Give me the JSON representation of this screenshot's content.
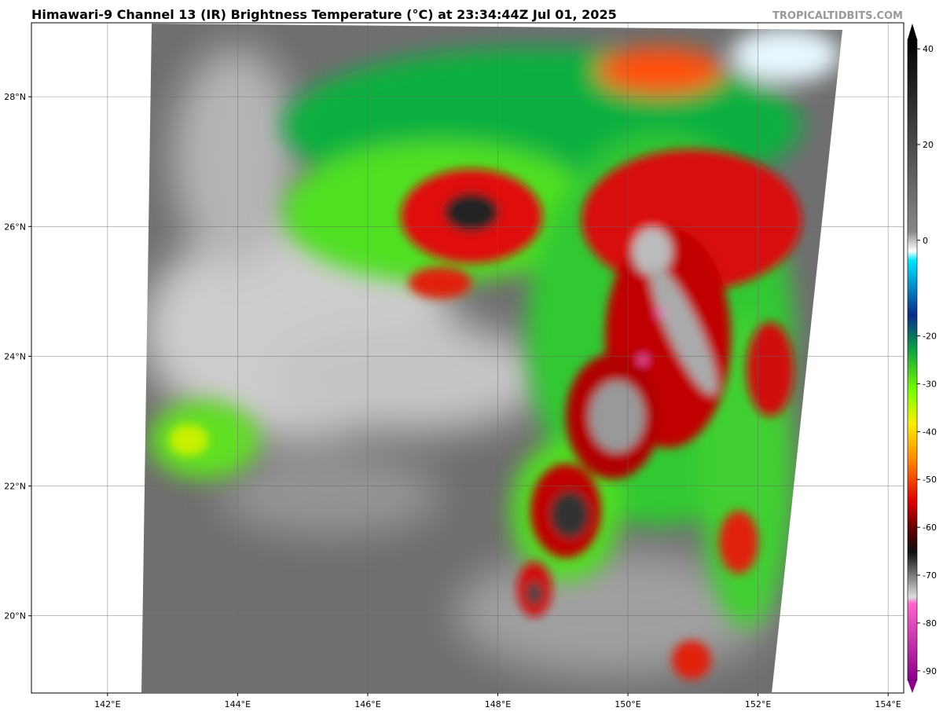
{
  "header": {
    "title": "Himawari-9 Channel 13 (IR) Brightness Temperature (°C) at 23:34:44Z Jul 01, 2025",
    "watermark": "TROPICALTIDBITS.COM"
  },
  "map": {
    "xlim": [
      140.83,
      154.24
    ],
    "ylim": [
      18.81,
      29.14
    ],
    "xticks": [
      {
        "value": 142,
        "label": "142°E"
      },
      {
        "value": 144,
        "label": "144°E"
      },
      {
        "value": 146,
        "label": "146°E"
      },
      {
        "value": 148,
        "label": "148°E"
      },
      {
        "value": 150,
        "label": "150°E"
      },
      {
        "value": 152,
        "label": "152°E"
      },
      {
        "value": 154,
        "label": "154°E"
      }
    ],
    "yticks": [
      {
        "value": 20,
        "label": "20°N"
      },
      {
        "value": 22,
        "label": "22°N"
      },
      {
        "value": 24,
        "label": "24°N"
      },
      {
        "value": 26,
        "label": "26°N"
      },
      {
        "value": 28,
        "label": "28°N"
      }
    ],
    "grid": true
  },
  "colorbar": {
    "clim": [
      -92,
      42
    ],
    "ticks": [
      40,
      20,
      0,
      -20,
      -30,
      -40,
      -50,
      -60,
      -70,
      -80,
      -90
    ]
  }
}
